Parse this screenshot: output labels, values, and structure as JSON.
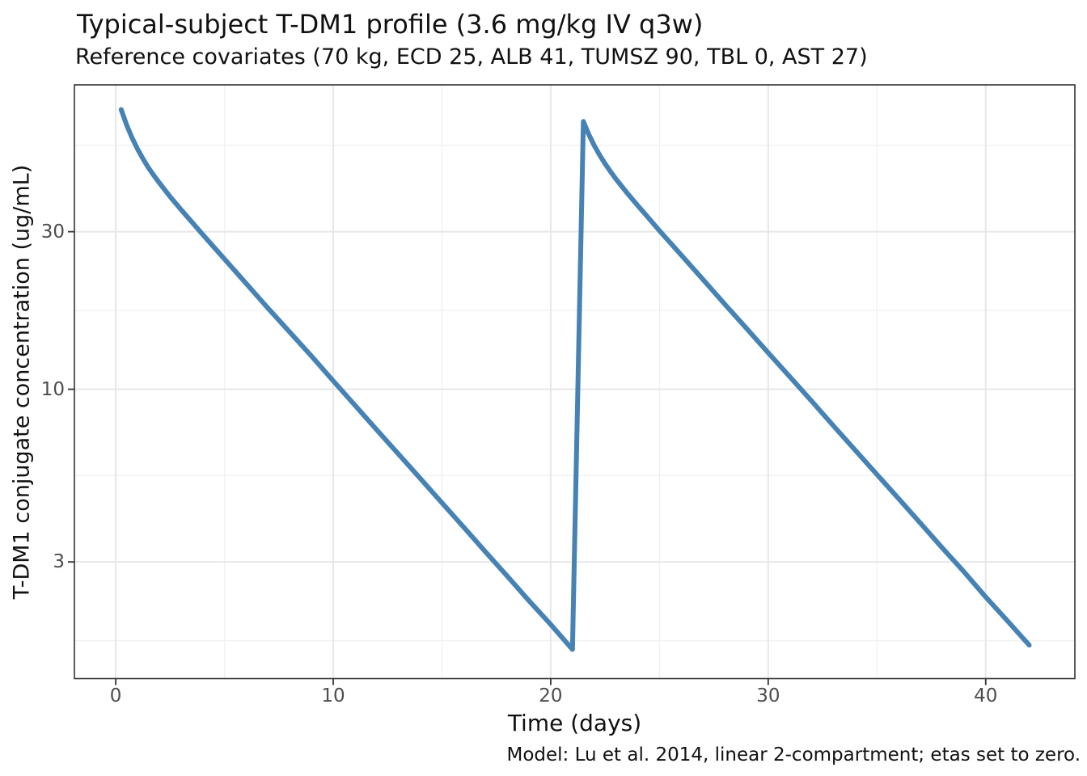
{
  "chart_data": {
    "type": "line",
    "title": "Typical-subject T-DM1 profile (3.6 mg/kg IV q3w)",
    "subtitle": "Reference covariates (70 kg, ECD 25, ALB 41, TUMSZ 90, TBL 0, AST 27)",
    "caption": "Model: Lu et al. 2014, linear 2-compartment; etas set to zero.",
    "xlabel": "Time (days)",
    "ylabel": "T-DM1 conjugate concentration (ug/mL)",
    "y_scale": "log10",
    "xlim": [
      -1.9,
      44.1
    ],
    "ylim": [
      1.33,
      83.5
    ],
    "x_ticks": [
      0,
      10,
      20,
      30,
      40
    ],
    "y_ticks": [
      30,
      10,
      3
    ],
    "x_minor_breaks": [
      5,
      15,
      25,
      35
    ],
    "y_minor_breaks": [
      1.732,
      5.477,
      17.32,
      54.77
    ],
    "grid": true,
    "legend": "none",
    "line_color": "#4682B4",
    "grid_major_color": "#e7e7e7",
    "grid_minor_color": "#f0f0f0",
    "panel_border_color": "#333333",
    "tick_text_color": "#4d4d4d",
    "dose_events": [
      {
        "time_days": 0,
        "dose": "3.6 mg/kg IV"
      },
      {
        "time_days": 21,
        "dose": "3.6 mg/kg IV"
      }
    ],
    "series": [
      {
        "name": "typical-subject",
        "points": [
          [
            0.25,
            70.3
          ],
          [
            0.5,
            63.2
          ],
          [
            0.75,
            57.7
          ],
          [
            1,
            53.4
          ],
          [
            1.25,
            49.9
          ],
          [
            1.5,
            46.9
          ],
          [
            1.75,
            44.4
          ],
          [
            2,
            42.2
          ],
          [
            2.5,
            38.3
          ],
          [
            3,
            35.0
          ],
          [
            3.5,
            32.1
          ],
          [
            4,
            29.4
          ],
          [
            5,
            24.8
          ],
          [
            6,
            20.9
          ],
          [
            7,
            17.6
          ],
          [
            8,
            14.9
          ],
          [
            9,
            12.6
          ],
          [
            10,
            10.6
          ],
          [
            11,
            8.94
          ],
          [
            12,
            7.54
          ],
          [
            13,
            6.36
          ],
          [
            14,
            5.37
          ],
          [
            15,
            4.53
          ],
          [
            16,
            3.82
          ],
          [
            17,
            3.22
          ],
          [
            18,
            2.72
          ],
          [
            19,
            2.29
          ],
          [
            20,
            1.94
          ],
          [
            21,
            1.63
          ],
          [
            21.5,
            64.7
          ],
          [
            21.75,
            59.1
          ],
          [
            22,
            54.7
          ],
          [
            22.25,
            51.2
          ],
          [
            22.5,
            48.2
          ],
          [
            22.75,
            45.6
          ],
          [
            23,
            43.3
          ],
          [
            23.5,
            39.4
          ],
          [
            24,
            36.0
          ],
          [
            24.5,
            33.0
          ],
          [
            25,
            30.2
          ],
          [
            26,
            25.5
          ],
          [
            27,
            21.5
          ],
          [
            28,
            18.1
          ],
          [
            29,
            15.3
          ],
          [
            30,
            12.9
          ],
          [
            31,
            10.9
          ],
          [
            32,
            9.2
          ],
          [
            33,
            7.75
          ],
          [
            34,
            6.54
          ],
          [
            35,
            5.52
          ],
          [
            36,
            4.66
          ],
          [
            37,
            3.93
          ],
          [
            38,
            3.31
          ],
          [
            39,
            2.8
          ],
          [
            40,
            2.35
          ],
          [
            41,
            1.99
          ],
          [
            42,
            1.68
          ]
        ]
      }
    ]
  }
}
